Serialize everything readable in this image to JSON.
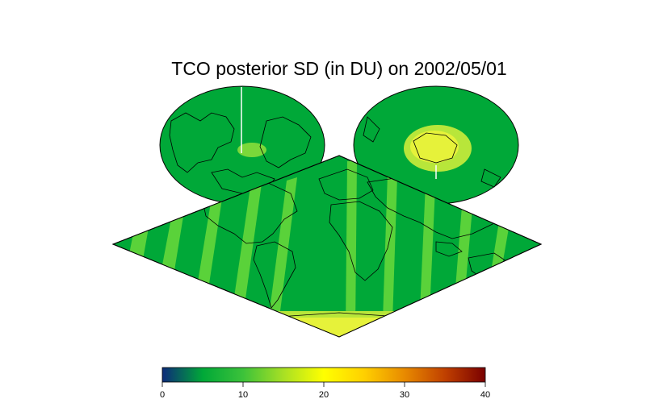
{
  "title": "TCO posterior SD (in DU) on 2002/05/01",
  "colorbar": {
    "min": 0,
    "max": 40,
    "ticks": [
      0,
      10,
      20,
      30,
      40
    ],
    "tick_labels": [
      "0",
      "10",
      "20",
      "30",
      "40"
    ],
    "colors": [
      "#0d2a7a",
      "#00a838",
      "#3cc23a",
      "#a8e024",
      "#ffff00",
      "#ffd000",
      "#e88a00",
      "#c04000",
      "#7a0000"
    ]
  },
  "field_colors": {
    "background": "#00a838",
    "band": "#5ad23a",
    "polar_high": "#e6f23a",
    "polar_mid": "#b8e63a",
    "coast": "#000000"
  }
}
